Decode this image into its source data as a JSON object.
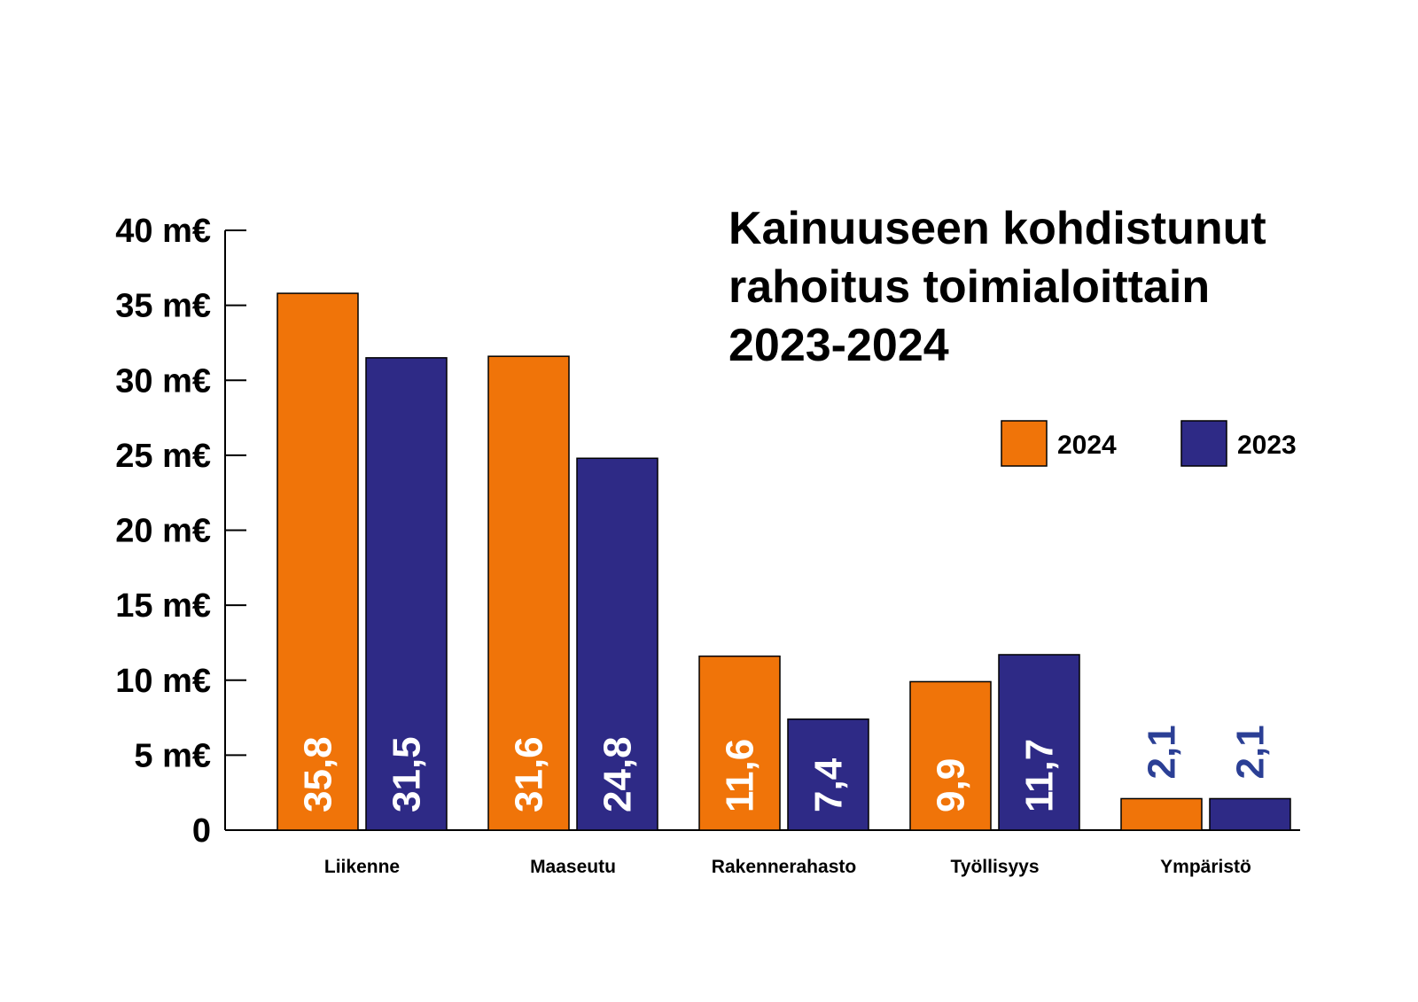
{
  "chart_data": {
    "type": "bar",
    "title": [
      "Kainuuseen kohdistunut",
      "rahoitus toimialoittain",
      "2023-2024"
    ],
    "xlabel": "",
    "ylabel": "",
    "ylim": [
      0,
      40
    ],
    "y_ticks": [
      "0",
      "5 m€",
      "10 m€",
      "15 m€",
      "20 m€",
      "25 m€",
      "30 m€",
      "35 m€",
      "40 m€"
    ],
    "categories": [
      "Liikenne",
      "Maaseutu",
      "Rakennerahasto",
      "Työllisyys",
      "Ympäristö"
    ],
    "series": [
      {
        "name": "2024",
        "color": "#f07409",
        "values": [
          35.8,
          31.6,
          11.6,
          9.9,
          2.1
        ],
        "labels": [
          "35,8",
          "31,6",
          "11,6",
          "9,9",
          "2,1"
        ]
      },
      {
        "name": "2023",
        "color": "#2e2a86",
        "values": [
          31.5,
          24.8,
          7.4,
          11.7,
          2.1
        ],
        "labels": [
          "31,5",
          "24,8",
          "7,4",
          "11,7",
          "2,1"
        ]
      }
    ],
    "data_label_color_inside": "#ffffff",
    "data_label_color_outside": "#2b3f95",
    "legend_position": "top-right",
    "grid": false
  }
}
